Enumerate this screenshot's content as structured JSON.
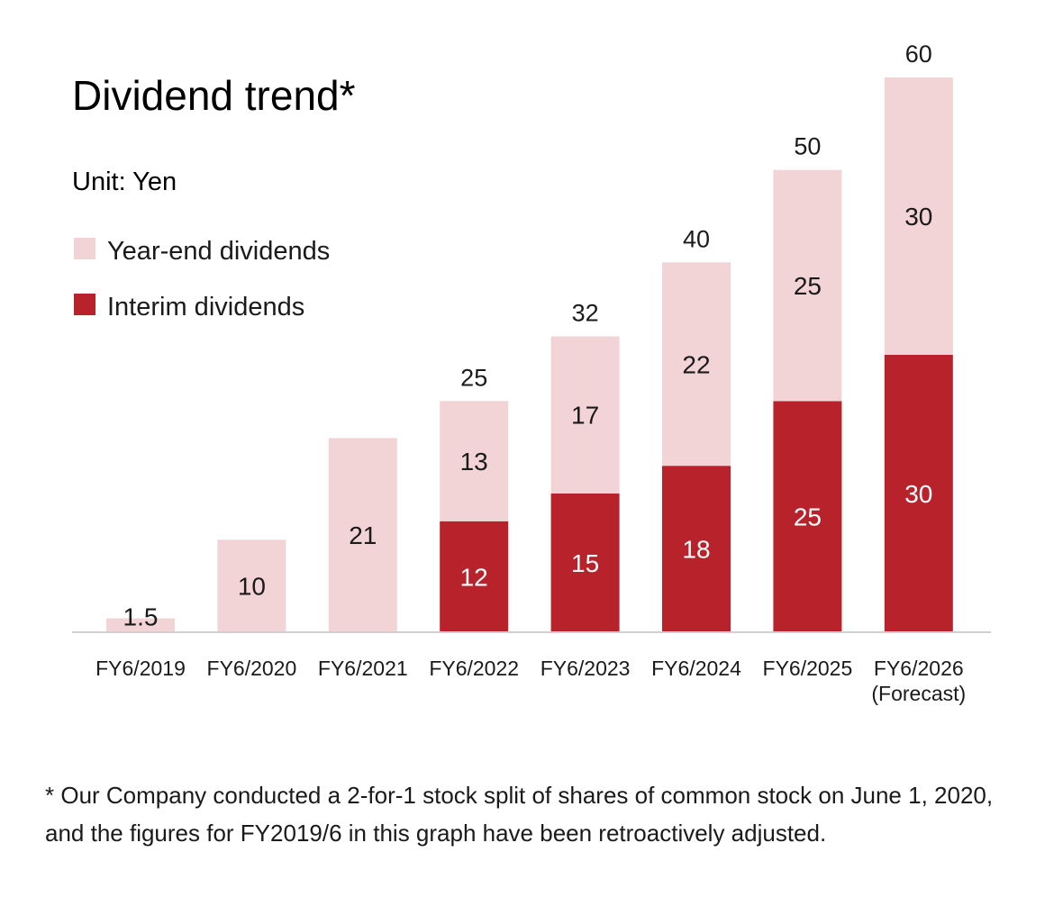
{
  "chart_data": {
    "type": "bar",
    "stacked": true,
    "title": "Dividend trend*",
    "unit_label": "Unit: Yen",
    "categories": [
      "FY6/2019",
      "FY6/2020",
      "FY6/2021",
      "FY6/2022",
      "FY6/2023",
      "FY6/2024",
      "FY6/2025",
      "FY6/2026"
    ],
    "category_sublabels": [
      "",
      "",
      "",
      "",
      "",
      "",
      "",
      "(Forecast)"
    ],
    "series": [
      {
        "name": "Interim dividends",
        "color": "#b8232b",
        "label_color": "#ffffff",
        "values": [
          0,
          0,
          0,
          12,
          15,
          18,
          25,
          30
        ]
      },
      {
        "name": "Year-end dividends",
        "color": "#f2d3d6",
        "label_color": "#1a1a1a",
        "values": [
          1.5,
          10,
          21,
          13,
          17,
          22,
          25,
          30
        ]
      }
    ],
    "totals": [
      1.5,
      10,
      21,
      25,
      32,
      40,
      50,
      60
    ],
    "total_labels": [
      "",
      "",
      "",
      "25",
      "32",
      "40",
      "50",
      "60"
    ],
    "segment_labels": [
      [
        "",
        "1.5"
      ],
      [
        "",
        "10"
      ],
      [
        "",
        "21"
      ],
      [
        "12",
        "13"
      ],
      [
        "15",
        "17"
      ],
      [
        "18",
        "22"
      ],
      [
        "25",
        "25"
      ],
      [
        "30",
        "30"
      ]
    ],
    "ylim": [
      0,
      60
    ],
    "legend_order": [
      "Year-end dividends",
      "Interim dividends"
    ],
    "legend_position": "top-left"
  },
  "footnote": "* Our Company conducted a 2-for-1 stock split of shares of common stock on June 1, 2020, and the figures for FY2019/6 in this graph have been retroactively adjusted."
}
